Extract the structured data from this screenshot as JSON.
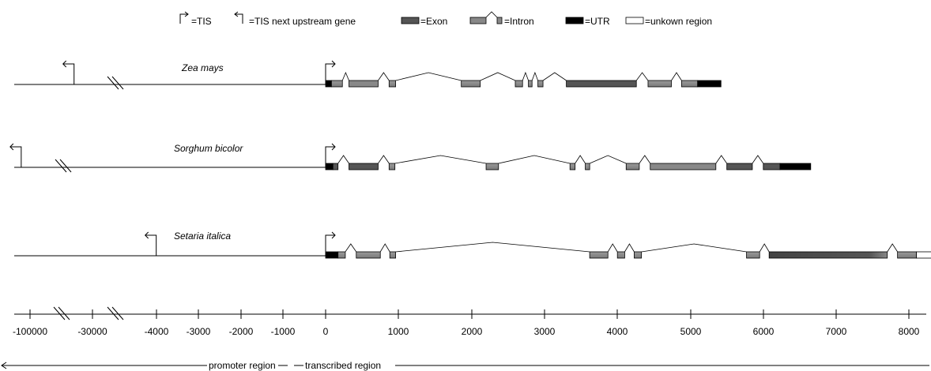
{
  "legend": {
    "tis": "=TIS",
    "tis_upstream": "=TIS next upstream gene",
    "exon": "=Exon",
    "intron": "=Intron",
    "utr": "=UTR",
    "unknown": "=unkown region"
  },
  "genes": [
    {
      "name": "Zea mays",
      "upstream_tis_bp": -50000,
      "segments": [
        {
          "type": "utr",
          "start": 0,
          "end": 80
        },
        {
          "type": "exon",
          "start": 80,
          "end": 230
        },
        {
          "type": "intron",
          "start": 230,
          "end": 320
        },
        {
          "type": "exon",
          "start": 320,
          "end": 720
        },
        {
          "type": "intron",
          "start": 720,
          "end": 870
        },
        {
          "type": "exon",
          "start": 870,
          "end": 960
        },
        {
          "type": "intron",
          "start": 960,
          "end": 1860
        },
        {
          "type": "exon",
          "start": 1860,
          "end": 2120
        },
        {
          "type": "intron",
          "start": 2120,
          "end": 2600
        },
        {
          "type": "exon",
          "start": 2600,
          "end": 2700
        },
        {
          "type": "intron",
          "start": 2700,
          "end": 2780
        },
        {
          "type": "exon",
          "start": 2780,
          "end": 2830
        },
        {
          "type": "intron",
          "start": 2830,
          "end": 2910
        },
        {
          "type": "exon",
          "start": 2910,
          "end": 2980
        },
        {
          "type": "intron",
          "start": 2980,
          "end": 3300
        },
        {
          "type": "exon",
          "start": 3300,
          "end": 4260
        },
        {
          "type": "intron",
          "start": 4260,
          "end": 4420
        },
        {
          "type": "exon",
          "start": 4420,
          "end": 4740
        },
        {
          "type": "intron",
          "start": 4740,
          "end": 4880
        },
        {
          "type": "exon",
          "start": 4880,
          "end": 5100
        },
        {
          "type": "utr",
          "start": 5100,
          "end": 5420
        }
      ]
    },
    {
      "name": "Sorghum bicolor",
      "upstream_tis_bp": -110000,
      "segments": [
        {
          "type": "utr",
          "start": 0,
          "end": 100
        },
        {
          "type": "exon",
          "start": 100,
          "end": 170
        },
        {
          "type": "intron",
          "start": 170,
          "end": 320
        },
        {
          "type": "exon",
          "start": 320,
          "end": 720
        },
        {
          "type": "intron",
          "start": 720,
          "end": 870
        },
        {
          "type": "exon",
          "start": 870,
          "end": 950
        },
        {
          "type": "intron",
          "start": 950,
          "end": 2200
        },
        {
          "type": "exon",
          "start": 2200,
          "end": 2370
        },
        {
          "type": "intron",
          "start": 2370,
          "end": 3350
        },
        {
          "type": "exon",
          "start": 3350,
          "end": 3420
        },
        {
          "type": "intron",
          "start": 3420,
          "end": 3560
        },
        {
          "type": "exon",
          "start": 3560,
          "end": 3620
        },
        {
          "type": "intron",
          "start": 3620,
          "end": 4120
        },
        {
          "type": "exon",
          "start": 4120,
          "end": 4300
        },
        {
          "type": "intron",
          "start": 4300,
          "end": 4450
        },
        {
          "type": "exon",
          "start": 4450,
          "end": 5350
        },
        {
          "type": "intron",
          "start": 5350,
          "end": 5500
        },
        {
          "type": "exon",
          "start": 5500,
          "end": 5850
        },
        {
          "type": "intron",
          "start": 5850,
          "end": 6000
        },
        {
          "type": "exon",
          "start": 6000,
          "end": 6230
        },
        {
          "type": "utr",
          "start": 6230,
          "end": 6650
        }
      ]
    },
    {
      "name": "Setaria italica",
      "upstream_tis_bp": -4100,
      "segments": [
        {
          "type": "utr",
          "start": 0,
          "end": 170
        },
        {
          "type": "exon",
          "start": 170,
          "end": 270
        },
        {
          "type": "intron",
          "start": 270,
          "end": 420
        },
        {
          "type": "exon",
          "start": 420,
          "end": 750
        },
        {
          "type": "intron",
          "start": 750,
          "end": 880
        },
        {
          "type": "exon",
          "start": 880,
          "end": 960
        },
        {
          "type": "intron",
          "start": 960,
          "end": 3620
        },
        {
          "type": "exon",
          "start": 3620,
          "end": 3870
        },
        {
          "type": "intron",
          "start": 3870,
          "end": 4000
        },
        {
          "type": "exon",
          "start": 4000,
          "end": 4100
        },
        {
          "type": "intron",
          "start": 4100,
          "end": 4230
        },
        {
          "type": "exon",
          "start": 4230,
          "end": 4330
        },
        {
          "type": "intron",
          "start": 4330,
          "end": 5770
        },
        {
          "type": "exon",
          "start": 5770,
          "end": 5950
        },
        {
          "type": "intron",
          "start": 5950,
          "end": 6080
        },
        {
          "type": "exon",
          "start": 6080,
          "end": 7700
        },
        {
          "type": "intron",
          "start": 7700,
          "end": 7840
        },
        {
          "type": "exon",
          "start": 7840,
          "end": 8100
        },
        {
          "type": "unknown",
          "start": 8100,
          "end": 8330
        }
      ]
    }
  ],
  "axis": {
    "tick_labels": [
      "-100000",
      "-30000",
      "-4000",
      "-3000",
      "-2000",
      "-1000",
      "0",
      "1000",
      "2000",
      "3000",
      "4000",
      "5000",
      "6000",
      "7000",
      "8000"
    ],
    "promoter_label": "promoter region",
    "transcribed_label": "transcribed region"
  },
  "colors": {
    "exon": "#888888",
    "exon_dark": "#555555",
    "utr": "#000000",
    "unknown": "#ffffff",
    "line": "#000000"
  }
}
